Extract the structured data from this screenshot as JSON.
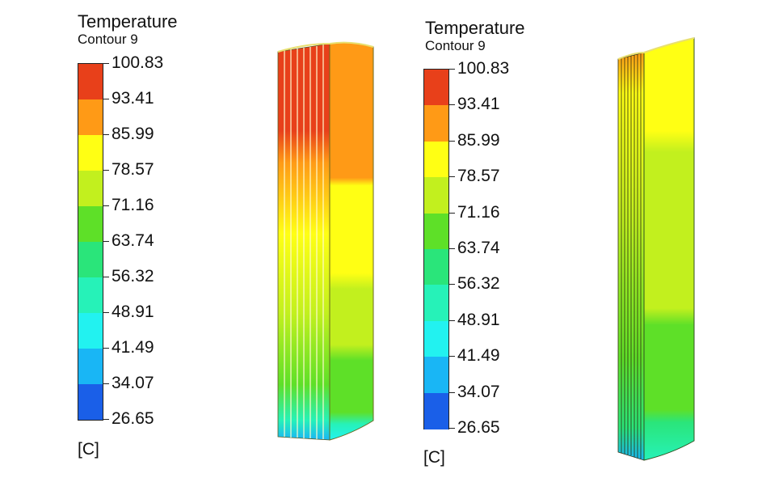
{
  "legends": [
    {
      "title": "Temperature",
      "subtitle": "Contour 9",
      "unit": "[C]",
      "labels": [
        "100.83",
        "93.41",
        "85.99",
        "78.57",
        "71.16",
        "63.74",
        "56.32",
        "48.91",
        "41.49",
        "34.07",
        "26.65"
      ],
      "colors": [
        "#e8401a",
        "#ff9a16",
        "#ffff14",
        "#c2f01e",
        "#5ee028",
        "#2ae57a",
        "#26f2b8",
        "#22f2f0",
        "#19b6f5",
        "#1a5fe8",
        "#0f1ae6"
      ]
    },
    {
      "title": "Temperature",
      "subtitle": "Contour 9",
      "unit": "[C]",
      "labels": [
        "100.83",
        "93.41",
        "85.99",
        "78.57",
        "71.16",
        "63.74",
        "56.32",
        "48.91",
        "41.49",
        "34.07",
        "26.65"
      ],
      "colors": [
        "#e8401a",
        "#ff9a16",
        "#ffff14",
        "#c2f01e",
        "#5ee028",
        "#2ae57a",
        "#26f2b8",
        "#22f2f0",
        "#19b6f5",
        "#1a5fe8",
        "#0f1ae6"
      ]
    }
  ]
}
